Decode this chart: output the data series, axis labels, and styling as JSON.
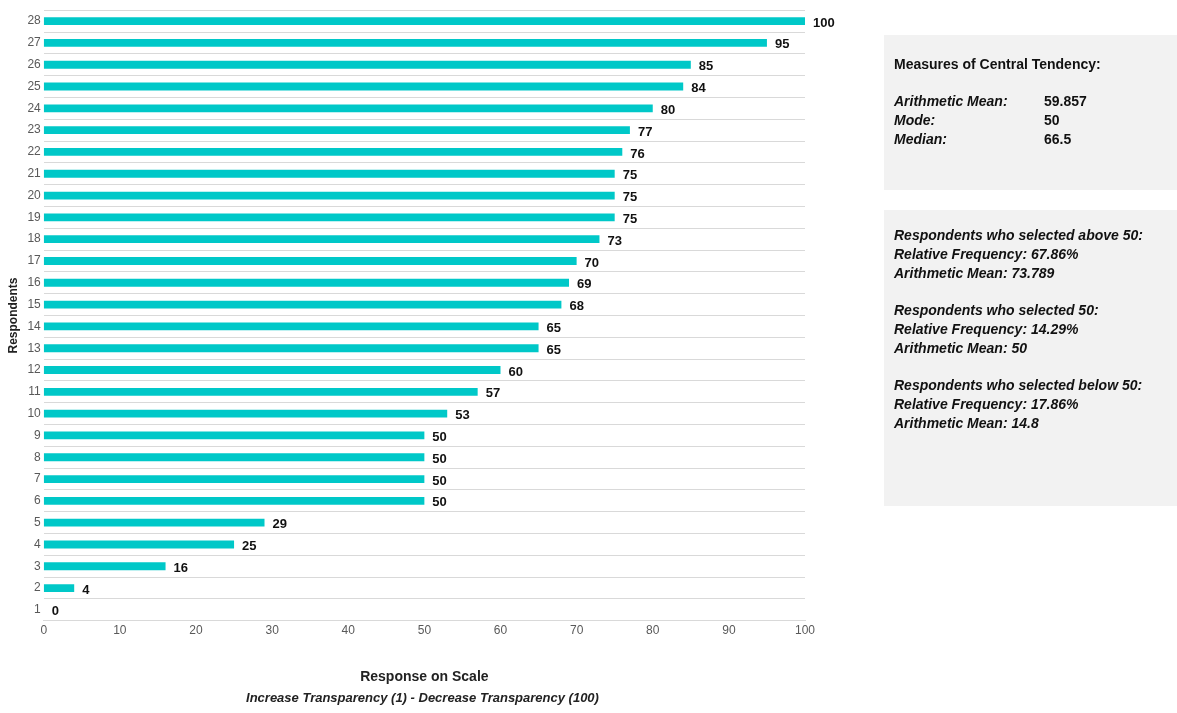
{
  "chart_data": {
    "type": "bar",
    "orientation": "horizontal",
    "categories": [
      "28",
      "27",
      "26",
      "25",
      "24",
      "23",
      "22",
      "21",
      "20",
      "19",
      "18",
      "17",
      "16",
      "15",
      "14",
      "13",
      "12",
      "11",
      "10",
      "9",
      "8",
      "7",
      "6",
      "5",
      "4",
      "3",
      "2",
      "1"
    ],
    "values": [
      100,
      95,
      85,
      84,
      80,
      77,
      76,
      75,
      75,
      75,
      73,
      70,
      69,
      68,
      65,
      65,
      60,
      57,
      53,
      50,
      50,
      50,
      50,
      29,
      25,
      16,
      4,
      0
    ],
    "color": "#00c8c8",
    "xlim": [
      0,
      100
    ],
    "xticks": [
      0,
      10,
      20,
      30,
      40,
      50,
      60,
      70,
      80,
      90,
      100
    ],
    "xlabel": "Response on Scale",
    "ylabel": "Respondents",
    "grid": "y",
    "legend": false,
    "data_labels": true,
    "annotations": [
      "Increase Transparency (1) - Decrease Transparency (100)",
      "Measures of Central Tendency:\n\nArithmetic Mean:\t59.857\nMode:\t50\nMedian:\t66.5",
      "Respondents who selected above 50:\nRelative Frequency:  67.86%\nArithmetic Mean:  73.789\n\nRespondents who selected 50:\nRelative Frequency:  14.29%\nArithmetic Mean:  50\n\nRespondents who selected below 50:\nRelative Frequency:  17.86%\nArithmetic Mean:  14.8"
    ]
  }
}
